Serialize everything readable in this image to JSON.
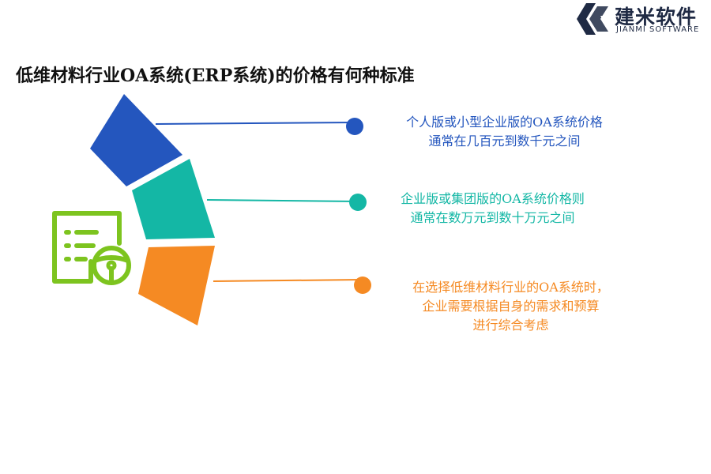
{
  "brand": {
    "name_cn": "建米软件",
    "name_en": "JIANMI SOFTWARE",
    "colors": {
      "dark": "#1f2a44"
    }
  },
  "title": "低维材料行业OA系统(ERP系统)的价格有何种标准",
  "icon": {
    "name": "document-steering-wheel-icon",
    "color": "#7dc41f"
  },
  "items": [
    {
      "color": "#2456be",
      "lines": [
        "个人版或小型企业版的OA系统价格",
        "通常在几百元到数千元之间"
      ]
    },
    {
      "color": "#14b7a5",
      "lines": [
        "企业版或集团版的OA系统价格则",
        "通常在数万元到数十万元之间"
      ]
    },
    {
      "color": "#f58a23",
      "lines": [
        "在选择低维材料行业的OA系统时，",
        "企业需要根据自身的需求和预算",
        "进行综合考虑"
      ]
    }
  ]
}
